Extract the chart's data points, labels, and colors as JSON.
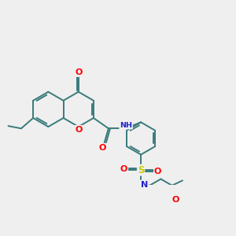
{
  "bg_color": "#efefef",
  "bond_color": "#3a7a7a",
  "bond_width": 1.4,
  "atom_colors": {
    "O": "#ff0000",
    "N": "#2222cc",
    "S": "#cccc00",
    "C": "#3a7a7a"
  },
  "font_size": 7.5,
  "fig_size": [
    3.0,
    3.0
  ],
  "dpi": 100
}
